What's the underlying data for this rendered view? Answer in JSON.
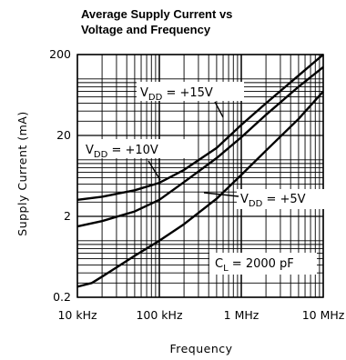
{
  "chart_data": {
    "type": "line",
    "title_line1": "Average Supply Current vs",
    "title_line2": "Voltage and Frequency",
    "xlabel": "Frequency",
    "ylabel": "Supply Current (mA)",
    "xscale": "log",
    "yscale": "log",
    "xlim": [
      10000,
      10000000
    ],
    "ylim": [
      0.2,
      200
    ],
    "grid": true,
    "x_ticks": [
      {
        "value": 10000,
        "label": "10 kHz"
      },
      {
        "value": 100000,
        "label": "100 kHz"
      },
      {
        "value": 1000000,
        "label": "1 MHz"
      },
      {
        "value": 10000000,
        "label": "10 MHz"
      }
    ],
    "y_ticks": [
      {
        "value": 0.2,
        "label": "0.2"
      },
      {
        "value": 2,
        "label": "2"
      },
      {
        "value": 20,
        "label": "20"
      },
      {
        "value": 200,
        "label": "200"
      }
    ],
    "series": [
      {
        "name": "VDD = +15V",
        "label_main": "V",
        "label_sub": "DD",
        "label_rest": " = +15V",
        "x": [
          10000,
          20000,
          50000,
          100000,
          200000,
          500000,
          1000000,
          2000000,
          5000000,
          10000000
        ],
        "y": [
          3.2,
          3.5,
          4.2,
          5.2,
          7.5,
          14,
          27,
          50,
          110,
          210
        ]
      },
      {
        "name": "VDD = +10V",
        "label_main": "V",
        "label_sub": "DD",
        "label_rest": " = +10V",
        "x": [
          10000,
          20000,
          50000,
          100000,
          200000,
          500000,
          1000000,
          2000000,
          5000000,
          10000000
        ],
        "y": [
          1.5,
          1.75,
          2.3,
          3.2,
          5.3,
          10.5,
          19,
          36,
          80,
          140
        ]
      },
      {
        "name": "VDD = +5V",
        "label_main": "V",
        "label_sub": "DD",
        "label_rest": " = +5V",
        "x": [
          10000,
          15000,
          20000,
          50000,
          100000,
          200000,
          500000,
          1000000,
          2000000,
          5000000,
          10000000
        ],
        "y": [
          0.27,
          0.3,
          0.36,
          0.65,
          1.0,
          1.6,
          3.3,
          6.5,
          13,
          32,
          70
        ]
      }
    ],
    "annotation": {
      "main": "C",
      "sub": "L",
      "rest": " =  2000 pF"
    }
  }
}
